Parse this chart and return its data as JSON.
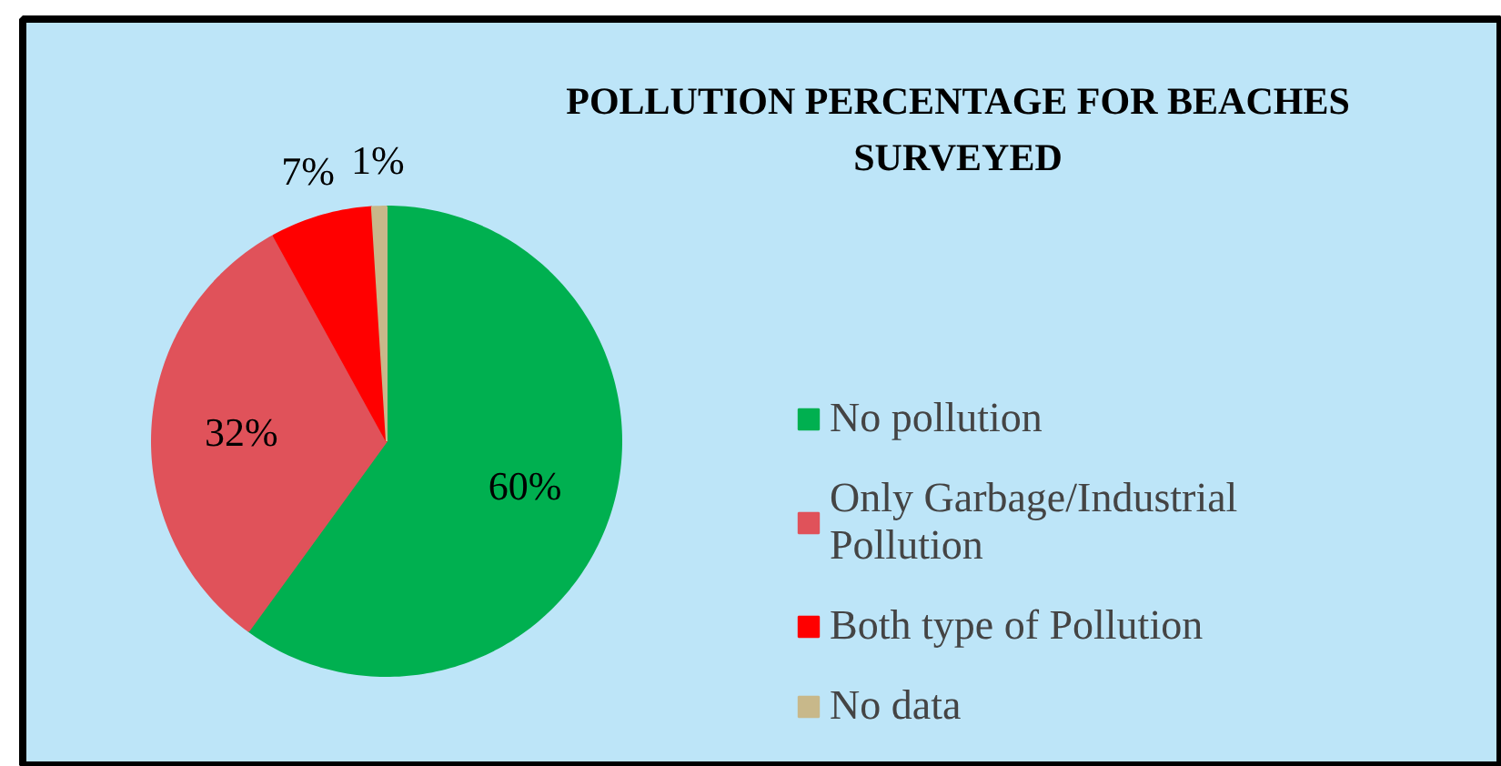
{
  "chart_data": {
    "type": "pie",
    "title": "POLLUTION PERCENTAGE FOR BEACHES SURVEYED",
    "categories": [
      "No pollution",
      "Only Garbage/Industrial Pollution",
      "Both type of Pollution",
      "No data"
    ],
    "values": [
      60,
      32,
      7,
      1
    ],
    "colors": [
      "#00b050",
      "#e0525a",
      "#ff0000",
      "#c8b88a"
    ],
    "value_labels": [
      "60%",
      "32%",
      "7%",
      "1%"
    ],
    "legend": "right"
  }
}
